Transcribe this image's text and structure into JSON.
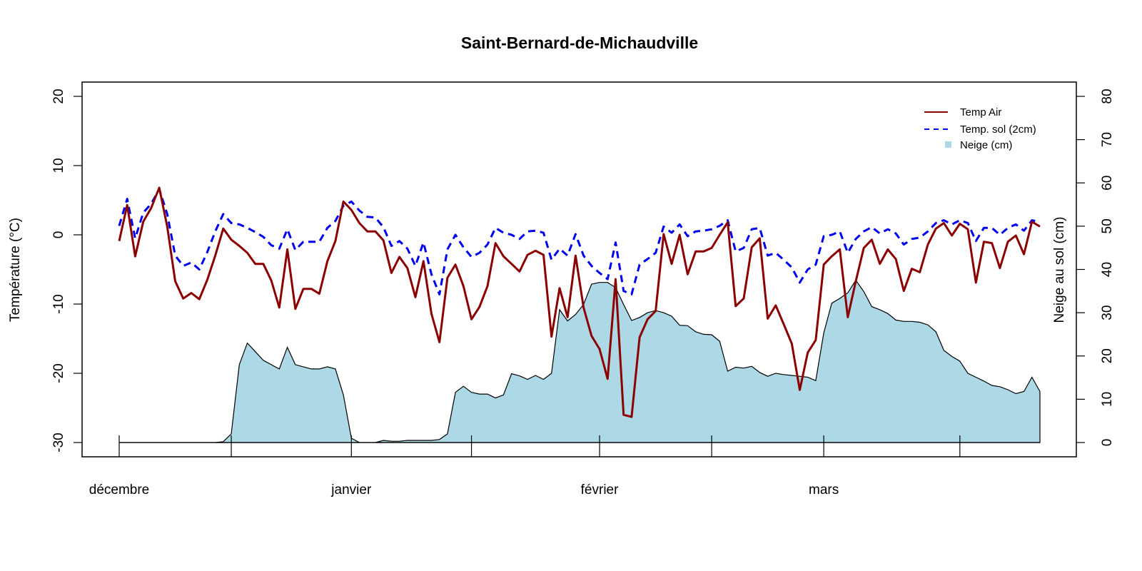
{
  "chart_data": {
    "type": "line",
    "title": "Saint-Bernard-de-Michaudville",
    "xlabel": "",
    "ylabel": "Température (°C)",
    "ylabel_right": "Neige au sol (cm)",
    "ylim": [
      -30,
      20
    ],
    "ylim_right": [
      0,
      80
    ],
    "y_ticks": [
      -30,
      -20,
      -10,
      0,
      10,
      20
    ],
    "y_ticks_right": [
      0,
      10,
      20,
      30,
      40,
      50,
      60,
      70,
      80
    ],
    "x_unit": "day index",
    "x_ticks": [
      0,
      14,
      29,
      44,
      60,
      74,
      88,
      105
    ],
    "x_tick_labels": [
      {
        "at": 0,
        "label": "décembre"
      },
      {
        "at": 29,
        "label": "janvier"
      },
      {
        "at": 60,
        "label": "février"
      },
      {
        "at": 88,
        "label": "mars"
      }
    ],
    "grid": false,
    "legend_position": "top-right",
    "series": [
      {
        "name": "Temp Air",
        "axis": "left",
        "style": "solid",
        "color": "#8b0000",
        "values": [
          -0.9,
          4.3,
          -3.1,
          1.9,
          3.9,
          6.8,
          1.2,
          -6.7,
          -9.2,
          -8.4,
          -9.3,
          -6.5,
          -3.0,
          0.9,
          -0.7,
          -1.6,
          -2.6,
          -4.2,
          -4.2,
          -6.6,
          -10.5,
          -2.1,
          -10.7,
          -7.8,
          -7.8,
          -8.5,
          -3.8,
          -0.9,
          4.8,
          3.6,
          1.7,
          0.5,
          0.5,
          -0.8,
          -5.5,
          -3.2,
          -4.8,
          -9.0,
          -3.8,
          -11.4,
          -15.5,
          -6.2,
          -4.3,
          -7.4,
          -12.2,
          -10.4,
          -7.4,
          -1.2,
          -3.1,
          -4.2,
          -5.3,
          -2.9,
          -2.3,
          -2.9,
          -14.7,
          -7.7,
          -11.9,
          -3.0,
          -10.5,
          -14.6,
          -16.5,
          -20.8,
          -6.4,
          -26.0,
          -26.3,
          -14.8,
          -12.2,
          -11.0,
          0.1,
          -4.2,
          0.0,
          -5.7,
          -2.4,
          -2.4,
          -1.9,
          0.0,
          1.8,
          -10.3,
          -9.2,
          -1.8,
          -0.5,
          -12.1,
          -10.2,
          -12.9,
          -15.7,
          -22.4,
          -17.0,
          -15.2,
          -4.3,
          -3.1,
          -2.1,
          -11.9,
          -6.7,
          -1.9,
          -0.7,
          -4.2,
          -2.1,
          -3.5,
          -8.1,
          -4.9,
          -5.4,
          -1.4,
          0.9,
          1.7,
          -0.1,
          1.6,
          0.8,
          -6.9,
          -1.0,
          -1.2,
          -4.8,
          -1.0,
          -0.1,
          -2.8,
          1.9,
          1.2
        ]
      },
      {
        "name": "Temp. sol (2cm)",
        "axis": "left",
        "style": "dashed",
        "color": "#0000ee",
        "values": [
          1.3,
          5.2,
          -0.5,
          3.2,
          4.5,
          6.6,
          3.0,
          -3.0,
          -4.5,
          -4.0,
          -5.0,
          -2.5,
          0.5,
          3.0,
          1.7,
          1.5,
          1.0,
          0.4,
          -0.3,
          -1.5,
          -2.0,
          0.8,
          -2.2,
          -1.0,
          -1.0,
          -1.0,
          1.0,
          2.0,
          4.2,
          4.8,
          3.5,
          2.6,
          2.5,
          1.1,
          -1.6,
          -0.9,
          -2.0,
          -4.5,
          -1.1,
          -5.7,
          -8.6,
          -2.1,
          0.0,
          -1.8,
          -3.2,
          -2.6,
          -1.4,
          1.0,
          0.3,
          0.0,
          -0.6,
          0.5,
          0.6,
          0.3,
          -3.6,
          -2.0,
          -3.0,
          0.1,
          -3.0,
          -4.5,
          -5.5,
          -6.4,
          -1.1,
          -8.1,
          -8.6,
          -4.3,
          -3.5,
          -2.6,
          1.2,
          0.3,
          1.5,
          -0.2,
          0.5,
          0.6,
          0.8,
          1.3,
          2.1,
          -2.4,
          -1.9,
          0.8,
          1.0,
          -3.0,
          -2.6,
          -3.6,
          -4.7,
          -6.9,
          -5.0,
          -4.3,
          -0.2,
          0.0,
          0.5,
          -2.6,
          -0.6,
          0.5,
          1.1,
          0.2,
          0.8,
          0.2,
          -1.4,
          -0.6,
          -0.4,
          0.5,
          1.7,
          2.1,
          1.5,
          2.1,
          1.7,
          -0.9,
          1.0,
          1.0,
          0.0,
          1.0,
          1.5,
          0.6,
          2.1,
          1.8
        ]
      },
      {
        "name": "Neige (cm)",
        "axis": "right",
        "style": "area",
        "color": "#add8e6",
        "values": [
          0,
          0,
          0,
          0,
          0,
          0,
          0,
          0,
          0,
          0,
          0,
          0,
          0,
          0.2,
          2,
          18,
          23,
          21,
          19,
          18,
          17,
          22,
          18,
          17.5,
          17,
          17,
          17.5,
          17,
          11,
          1,
          0,
          0,
          0,
          0.5,
          0.3,
          0.3,
          0.5,
          0.5,
          0.5,
          0.5,
          0.7,
          2.0,
          11.6,
          13,
          11.6,
          11.2,
          11.2,
          10.3,
          11,
          15.9,
          15.4,
          14.6,
          15.5,
          14.6,
          16,
          30.7,
          28.1,
          29.6,
          31.9,
          36.6,
          37,
          37,
          35.8,
          31.9,
          28.2,
          28.9,
          30,
          30.5,
          30,
          29.2,
          27.1,
          27,
          25.6,
          25,
          24.9,
          23.4,
          16.5,
          17.4,
          17.2,
          17.6,
          16.2,
          15.3,
          16,
          15.7,
          15.5,
          15.3,
          15.1,
          14.3,
          25.3,
          32.2,
          33.3,
          34.6,
          37.5,
          34.9,
          31.4,
          30.7,
          29.8,
          28.3,
          28,
          28,
          27.8,
          27.2,
          25.6,
          21.3,
          19.9,
          18.8,
          16,
          15.1,
          14.2,
          13.2,
          12.9,
          12.2,
          11.3,
          11.8,
          15.1,
          11.8
        ]
      }
    ]
  }
}
